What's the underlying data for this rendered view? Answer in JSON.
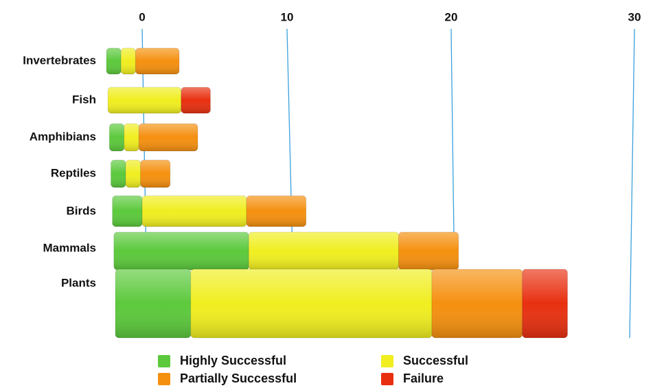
{
  "chart_data": {
    "type": "bar",
    "orientation": "horizontal",
    "stacked": true,
    "categories": [
      "Invertebrates",
      "Fish",
      "Amphibians",
      "Reptiles",
      "Birds",
      "Mammals",
      "Plants"
    ],
    "series": [
      {
        "name": "Highly Successful",
        "color": "#5cc93c",
        "values": [
          1,
          0,
          1,
          1,
          2,
          9,
          5
        ]
      },
      {
        "name": "Successful",
        "color": "#f0ee1f",
        "values": [
          1,
          5,
          1,
          1,
          7,
          10,
          16
        ]
      },
      {
        "name": "Partially Successful",
        "color": "#f5900f",
        "values": [
          3,
          0,
          4,
          2,
          4,
          4,
          6
        ]
      },
      {
        "name": "Failure",
        "color": "#e83010",
        "values": [
          0,
          2,
          0,
          0,
          0,
          0,
          3
        ]
      }
    ],
    "xlim": [
      0,
      30
    ],
    "xticks": [
      0,
      10,
      20,
      30
    ],
    "grid": true,
    "legend": "bottom"
  }
}
